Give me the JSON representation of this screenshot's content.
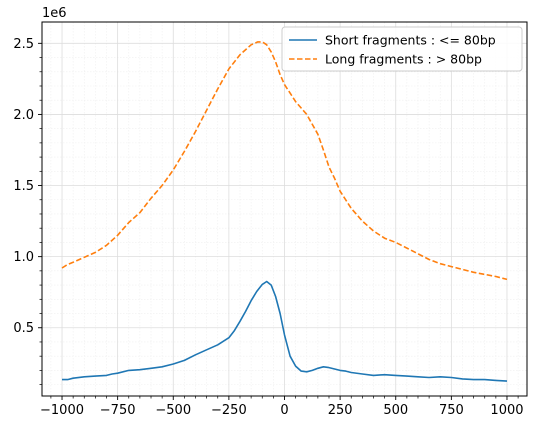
{
  "chart_data": {
    "type": "line",
    "title": "",
    "xlabel": "",
    "ylabel": "",
    "y_offset_label": "1e6",
    "xlim": [
      -1090,
      1090
    ],
    "ylim": [
      0.02,
      2.65
    ],
    "x_ticks": [
      -1000,
      -750,
      -500,
      -250,
      0,
      250,
      500,
      750,
      1000
    ],
    "x_tick_labels": [
      "−1000",
      "−750",
      "−500",
      "−250",
      "0",
      "250",
      "500",
      "750",
      "1000"
    ],
    "y_ticks": [
      0.5,
      1.0,
      1.5,
      2.0,
      2.5
    ],
    "y_tick_labels": [
      "0.5",
      "1.0",
      "1.5",
      "2.0",
      "2.5"
    ],
    "grid": true,
    "minor_grid": true,
    "legend_position": "top-right",
    "series": [
      {
        "name": "Short fragments : <= 80bp",
        "color": "#1f77b4",
        "style": "solid",
        "x": [
          -1000,
          -975,
          -950,
          -900,
          -850,
          -800,
          -775,
          -750,
          -700,
          -650,
          -600,
          -550,
          -500,
          -450,
          -400,
          -350,
          -300,
          -250,
          -225,
          -200,
          -175,
          -150,
          -125,
          -100,
          -80,
          -60,
          -40,
          -20,
          0,
          25,
          50,
          75,
          100,
          125,
          150,
          175,
          200,
          225,
          250,
          275,
          300,
          350,
          400,
          450,
          500,
          550,
          600,
          650,
          700,
          750,
          800,
          850,
          900,
          950,
          1000
        ],
        "y": [
          0.135,
          0.135,
          0.145,
          0.155,
          0.16,
          0.165,
          0.175,
          0.18,
          0.2,
          0.205,
          0.215,
          0.225,
          0.245,
          0.27,
          0.31,
          0.345,
          0.38,
          0.43,
          0.48,
          0.545,
          0.615,
          0.69,
          0.755,
          0.805,
          0.825,
          0.8,
          0.72,
          0.6,
          0.45,
          0.3,
          0.23,
          0.195,
          0.19,
          0.2,
          0.215,
          0.225,
          0.22,
          0.21,
          0.2,
          0.195,
          0.185,
          0.175,
          0.165,
          0.17,
          0.165,
          0.16,
          0.155,
          0.15,
          0.155,
          0.15,
          0.14,
          0.135,
          0.135,
          0.13,
          0.125
        ]
      },
      {
        "name": "Long fragments : > 80bp",
        "color": "#ff7f0e",
        "style": "dashed",
        "x": [
          -1000,
          -975,
          -950,
          -900,
          -850,
          -800,
          -750,
          -700,
          -650,
          -600,
          -550,
          -500,
          -450,
          -400,
          -350,
          -300,
          -250,
          -200,
          -150,
          -120,
          -100,
          -80,
          -60,
          -40,
          -20,
          0,
          25,
          50,
          100,
          150,
          175,
          200,
          225,
          250,
          300,
          350,
          400,
          450,
          500,
          550,
          600,
          650,
          700,
          750,
          800,
          850,
          900,
          950,
          1000
        ],
        "y": [
          0.92,
          0.945,
          0.96,
          0.995,
          1.03,
          1.08,
          1.15,
          1.24,
          1.31,
          1.41,
          1.5,
          1.61,
          1.74,
          1.88,
          2.03,
          2.18,
          2.32,
          2.42,
          2.49,
          2.51,
          2.51,
          2.49,
          2.44,
          2.37,
          2.28,
          2.21,
          2.15,
          2.09,
          2.0,
          1.86,
          1.75,
          1.63,
          1.55,
          1.46,
          1.34,
          1.25,
          1.18,
          1.13,
          1.1,
          1.06,
          1.02,
          0.98,
          0.95,
          0.93,
          0.91,
          0.89,
          0.875,
          0.86,
          0.84
        ]
      }
    ]
  }
}
